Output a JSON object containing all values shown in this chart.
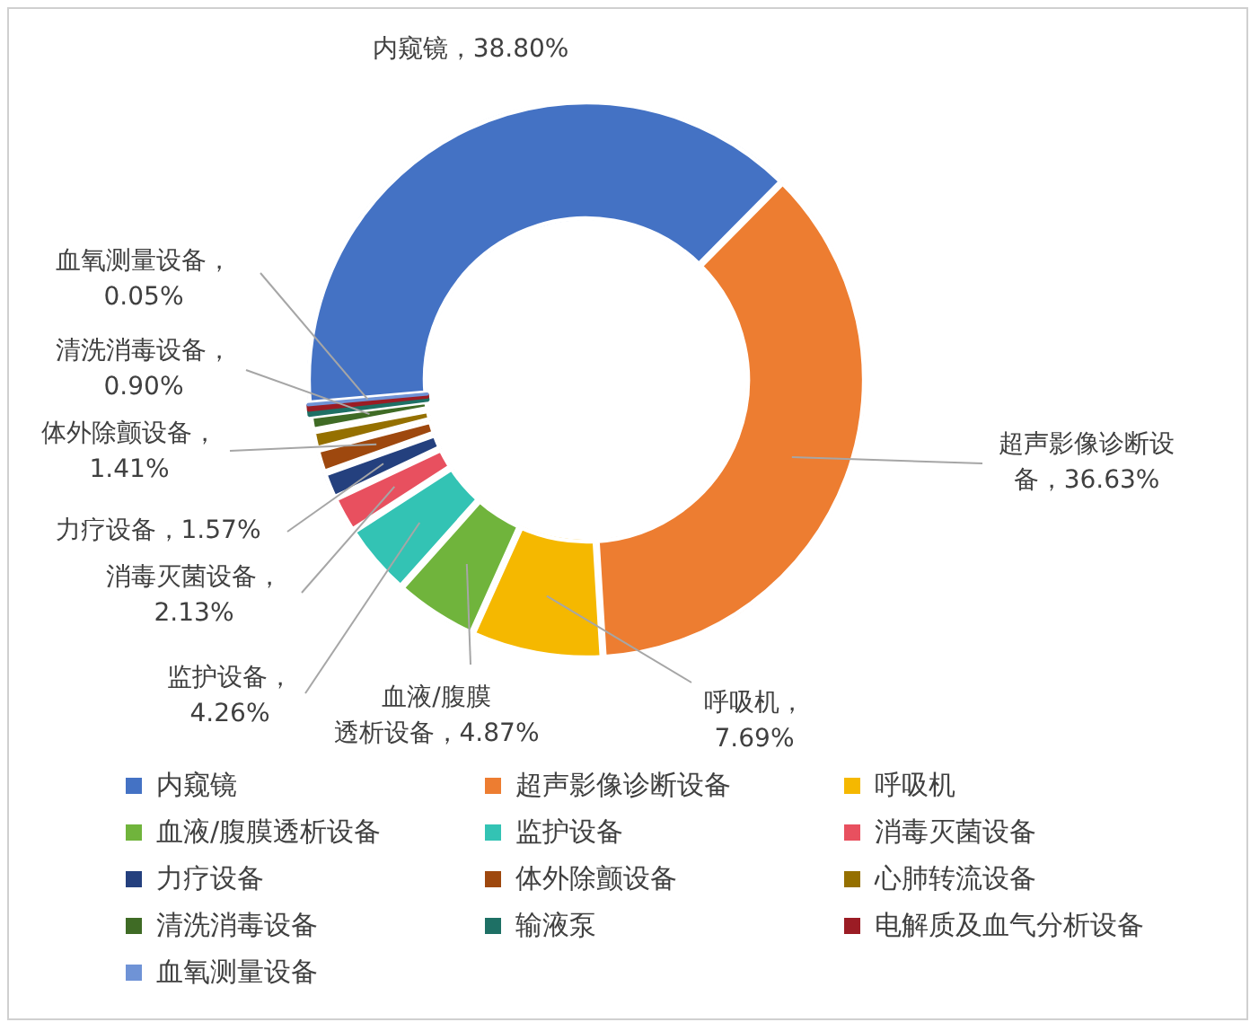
{
  "chart_data": {
    "type": "donut",
    "categories": [
      "内窥镜",
      "超声影像诊断设备",
      "呼吸机",
      "血液/腹膜透析设备",
      "监护设备",
      "消毒灭菌设备",
      "力疗设备",
      "体外除颤设备",
      "心肺转流设备",
      "清洗消毒设备",
      "输液泵",
      "电解质及血气分析设备",
      "血氧测量设备"
    ],
    "values": [
      38.8,
      36.63,
      7.69,
      4.87,
      4.26,
      2.13,
      1.57,
      1.41,
      1.09,
      0.9,
      0.3,
      0.3,
      0.05
    ],
    "colors": [
      "#4472c4",
      "#ed7d31",
      "#f5b800",
      "#70b43c",
      "#33c3b4",
      "#e8505f",
      "#24407e",
      "#9e480e",
      "#957000",
      "#3f6b25",
      "#1e7065",
      "#9b1c24",
      "#6f93d6"
    ],
    "value_labels": [
      "内窥镜，38.80%",
      "超声影像诊断设备，36.63%",
      "呼吸机，7.69%",
      "血液/腹膜透析设备，4.87%",
      "监护设备，4.26%",
      "消毒灭菌设备，2.13%",
      "力疗设备，1.57%",
      "体外除颤设备，1.41%",
      null,
      "清洗消毒设备，0.90%",
      null,
      null,
      "血氧测量设备，0.05%"
    ],
    "legend": "bottom"
  }
}
